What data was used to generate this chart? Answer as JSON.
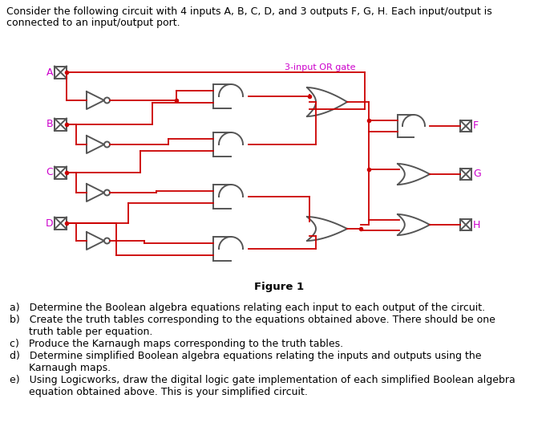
{
  "background_color": "#ffffff",
  "text_color": "#000000",
  "wire_color": "#cc0000",
  "gate_color": "#555555",
  "label_color": "#cc00cc",
  "title_line1": "Consider the following circuit with 4 inputs A, B, C, D, and 3 outputs F, G, H. Each input/output is",
  "title_line2": "connected to an input/output port.",
  "figure_label": "Figure 1",
  "or_gate_label": "3-input OR gate",
  "q_a": "a)   Determine the Boolean algebra equations relating each input to each output of the circuit.",
  "q_b1": "b)   Create the truth tables corresponding to the equations obtained above. There should be one",
  "q_b2": "      truth table per equation.",
  "q_c": "c)   Produce the Karnaugh maps corresponding to the truth tables.",
  "q_d1": "d)   Determine simplified Boolean algebra equations relating the inputs and outputs using the",
  "q_d2": "      Karnaugh maps.",
  "q_e1": "e)   Using Logicworks, draw the digital logic gate implementation of each simplified Boolean algebra",
  "q_e2": "      equation obtained above. This is your simplified circuit."
}
